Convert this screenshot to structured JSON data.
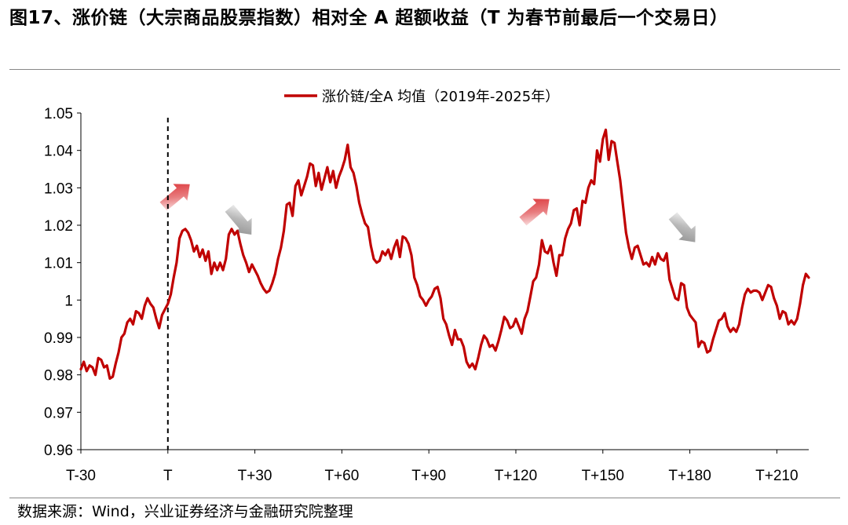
{
  "title": "图17、涨价链（大宗商品股票指数）相对全 A 超额收益（T 为春节前最后一个交易日）",
  "source": "数据来源：Wind，兴业证券经济与金融研究院整理",
  "colors": {
    "line": "#c00000",
    "up_arrow": "#d9262a",
    "down_arrow": "#8a8a8a",
    "axis": "#000000"
  },
  "chart_data": {
    "type": "line",
    "xlabel": "",
    "ylabel": "",
    "x_range": [
      -30,
      221
    ],
    "ylim": [
      0.96,
      1.05
    ],
    "grid": false,
    "legend_position": "top-center",
    "x_tick_labels": [
      "T-30",
      "T",
      "T+30",
      "T+60",
      "T+90",
      "T+120",
      "T+150",
      "T+180",
      "T+210"
    ],
    "x_ticks": [
      -30,
      0,
      30,
      60,
      90,
      120,
      150,
      180,
      210
    ],
    "y_tick_labels": [
      "0.96",
      "0.97",
      "0.98",
      "0.99",
      "1",
      "1.01",
      "1.02",
      "1.03",
      "1.04",
      "1.05"
    ],
    "y_ticks": [
      0.96,
      0.97,
      0.98,
      0.99,
      1.0,
      1.01,
      1.02,
      1.03,
      1.04,
      1.05
    ],
    "vline_x": 0,
    "annotations": [
      {
        "type": "up-arrow",
        "x": 3,
        "y": 1.028
      },
      {
        "type": "down-arrow",
        "x": 25,
        "y": 1.021
      },
      {
        "type": "up-arrow",
        "x": 127,
        "y": 1.024
      },
      {
        "type": "down-arrow",
        "x": 178,
        "y": 1.019
      }
    ],
    "series": [
      {
        "name": "涨价链/全A 均值（2019年-2025年）",
        "points": [
          [
            -30,
            0.9815
          ],
          [
            -29,
            0.9835
          ],
          [
            -28,
            0.981
          ],
          [
            -27,
            0.9825
          ],
          [
            -26,
            0.982
          ],
          [
            -25,
            0.98
          ],
          [
            -24,
            0.9845
          ],
          [
            -23,
            0.984
          ],
          [
            -22,
            0.982
          ],
          [
            -21,
            0.9825
          ],
          [
            -20,
            0.979
          ],
          [
            -19,
            0.9795
          ],
          [
            -18,
            0.983
          ],
          [
            -17,
            0.986
          ],
          [
            -16,
            0.99
          ],
          [
            -15,
            0.991
          ],
          [
            -14,
            0.994
          ],
          [
            -13,
            0.995
          ],
          [
            -12,
            0.9935
          ],
          [
            -11,
            0.997
          ],
          [
            -10,
            0.9965
          ],
          [
            -9,
            0.995
          ],
          [
            -8,
            0.9985
          ],
          [
            -7,
            1.0005
          ],
          [
            -6,
            0.999
          ],
          [
            -5,
            0.998
          ],
          [
            -4,
            0.995
          ],
          [
            -3,
            0.9925
          ],
          [
            -2,
            0.996
          ],
          [
            -1,
            0.9975
          ],
          [
            0,
            0.999
          ],
          [
            1,
            1.0015
          ],
          [
            2,
            1.006
          ],
          [
            3,
            1.01
          ],
          [
            4,
            1.0165
          ],
          [
            5,
            1.0185
          ],
          [
            6,
            1.019
          ],
          [
            7,
            1.018
          ],
          [
            8,
            1.016
          ],
          [
            9,
            1.013
          ],
          [
            10,
            1.0145
          ],
          [
            11,
            1.0115
          ],
          [
            12,
            1.0135
          ],
          [
            13,
            1.0105
          ],
          [
            14,
            1.013
          ],
          [
            15,
            1.007
          ],
          [
            16,
            1.01
          ],
          [
            17,
            1.008
          ],
          [
            18,
            1.01
          ],
          [
            19,
            1.008
          ],
          [
            20,
            1.011
          ],
          [
            21,
            1.0175
          ],
          [
            22,
            1.019
          ],
          [
            23,
            1.0175
          ],
          [
            24,
            1.0185
          ],
          [
            25,
            1.015
          ],
          [
            26,
            1.012
          ],
          [
            27,
            1.01
          ],
          [
            28,
            1.0075
          ],
          [
            29,
            1.0095
          ],
          [
            30,
            1.008
          ],
          [
            31,
            1.0065
          ],
          [
            32,
            1.0045
          ],
          [
            33,
            1.003
          ],
          [
            34,
            1.002
          ],
          [
            35,
            1.0025
          ],
          [
            36,
            1.0045
          ],
          [
            37,
            1.007
          ],
          [
            38,
            1.011
          ],
          [
            39,
            1.014
          ],
          [
            40,
            1.0185
          ],
          [
            41,
            1.0255
          ],
          [
            42,
            1.026
          ],
          [
            43,
            1.0225
          ],
          [
            44,
            1.0305
          ],
          [
            45,
            1.032
          ],
          [
            46,
            1.028
          ],
          [
            47,
            1.0305
          ],
          [
            48,
            1.033
          ],
          [
            49,
            1.0365
          ],
          [
            50,
            1.036
          ],
          [
            51,
            1.0305
          ],
          [
            52,
            1.034
          ],
          [
            53,
            1.0295
          ],
          [
            54,
            1.0325
          ],
          [
            55,
            1.0355
          ],
          [
            56,
            1.0315
          ],
          [
            57,
            1.0345
          ],
          [
            58,
            1.03
          ],
          [
            59,
            1.033
          ],
          [
            60,
            1.035
          ],
          [
            61,
            1.0375
          ],
          [
            62,
            1.0415
          ],
          [
            63,
            1.0355
          ],
          [
            64,
            1.034
          ],
          [
            65,
            1.0305
          ],
          [
            66,
            1.026
          ],
          [
            67,
            1.023
          ],
          [
            68,
            1.0205
          ],
          [
            69,
            1.0195
          ],
          [
            70,
            1.0145
          ],
          [
            71,
            1.011
          ],
          [
            72,
            1.01
          ],
          [
            73,
            1.0105
          ],
          [
            74,
            1.013
          ],
          [
            75,
            1.012
          ],
          [
            76,
            1.0135
          ],
          [
            77,
            1.011
          ],
          [
            78,
            1.014
          ],
          [
            79,
            1.016
          ],
          [
            80,
            1.0115
          ],
          [
            81,
            1.017
          ],
          [
            82,
            1.0165
          ],
          [
            83,
            1.015
          ],
          [
            84,
            1.012
          ],
          [
            85,
            1.006
          ],
          [
            86,
            1.004
          ],
          [
            87,
            1.001
          ],
          [
            88,
            1.0
          ],
          [
            89,
            0.9985
          ],
          [
            90,
            1.0
          ],
          [
            91,
            1.001
          ],
          [
            92,
            1.003
          ],
          [
            93,
            1.0035
          ],
          [
            94,
            1.0005
          ],
          [
            95,
            0.995
          ],
          [
            96,
            0.9935
          ],
          [
            97,
            0.9905
          ],
          [
            98,
            0.988
          ],
          [
            99,
            0.992
          ],
          [
            100,
            0.9895
          ],
          [
            101,
            0.9895
          ],
          [
            102,
            0.9875
          ],
          [
            103,
            0.9835
          ],
          [
            104,
            0.982
          ],
          [
            105,
            0.983
          ],
          [
            106,
            0.9815
          ],
          [
            107,
            0.9845
          ],
          [
            108,
            0.988
          ],
          [
            109,
            0.9905
          ],
          [
            110,
            0.9895
          ],
          [
            111,
            0.9875
          ],
          [
            112,
            0.988
          ],
          [
            113,
            0.9865
          ],
          [
            114,
            0.989
          ],
          [
            115,
            0.992
          ],
          [
            116,
            0.9955
          ],
          [
            117,
            0.9945
          ],
          [
            118,
            0.9925
          ],
          [
            119,
            0.993
          ],
          [
            120,
            0.995
          ],
          [
            121,
            0.993
          ],
          [
            122,
            0.991
          ],
          [
            123,
            0.995
          ],
          [
            124,
            0.997
          ],
          [
            125,
            1.001
          ],
          [
            126,
            1.005
          ],
          [
            127,
            1.006
          ],
          [
            128,
            1.0095
          ],
          [
            129,
            1.016
          ],
          [
            130,
            1.013
          ],
          [
            131,
            1.0125
          ],
          [
            132,
            1.0145
          ],
          [
            133,
            1.01
          ],
          [
            134,
            1.0065
          ],
          [
            135,
            1.012
          ],
          [
            136,
            1.012
          ],
          [
            137,
            1.0165
          ],
          [
            138,
            1.019
          ],
          [
            139,
            1.0205
          ],
          [
            140,
            1.024
          ],
          [
            141,
            1.0245
          ],
          [
            142,
            1.02
          ],
          [
            143,
            1.0265
          ],
          [
            144,
            1.026
          ],
          [
            145,
            1.03
          ],
          [
            146,
            1.032
          ],
          [
            147,
            1.031
          ],
          [
            148,
            1.04
          ],
          [
            149,
            1.037
          ],
          [
            150,
            1.043
          ],
          [
            151,
            1.0455
          ],
          [
            152,
            1.0375
          ],
          [
            153,
            1.0425
          ],
          [
            154,
            1.042
          ],
          [
            155,
            1.037
          ],
          [
            156,
            1.032
          ],
          [
            157,
            1.025
          ],
          [
            158,
            1.018
          ],
          [
            159,
            1.014
          ],
          [
            160,
            1.011
          ],
          [
            161,
            1.014
          ],
          [
            162,
            1.0145
          ],
          [
            163,
            1.012
          ],
          [
            164,
            1.0095
          ],
          [
            165,
            1.01
          ],
          [
            166,
            1.009
          ],
          [
            167,
            1.0115
          ],
          [
            168,
            1.0095
          ],
          [
            169,
            1.0125
          ],
          [
            170,
            1.011
          ],
          [
            171,
            1.0105
          ],
          [
            172,
            1.0125
          ],
          [
            173,
            1.0055
          ],
          [
            174,
            1.003
          ],
          [
            175,
            1.0005
          ],
          [
            176,
            1.0
          ],
          [
            177,
            1.0045
          ],
          [
            178,
            1.004
          ],
          [
            179,
            0.998
          ],
          [
            180,
            0.996
          ],
          [
            181,
            0.995
          ],
          [
            182,
            0.994
          ],
          [
            183,
            0.9875
          ],
          [
            184,
            0.989
          ],
          [
            185,
            0.9885
          ],
          [
            186,
            0.986
          ],
          [
            187,
            0.9865
          ],
          [
            188,
            0.9895
          ],
          [
            189,
            0.992
          ],
          [
            190,
            0.9945
          ],
          [
            191,
            0.995
          ],
          [
            192,
            0.9965
          ],
          [
            193,
            0.993
          ],
          [
            194,
            0.9915
          ],
          [
            195,
            0.9925
          ],
          [
            196,
            0.9915
          ],
          [
            197,
            0.9935
          ],
          [
            198,
            0.998
          ],
          [
            199,
            1.0015
          ],
          [
            200,
            1.003
          ],
          [
            201,
            1.002
          ],
          [
            202,
            1.0025
          ],
          [
            203,
            1.0025
          ],
          [
            204,
            1.002
          ],
          [
            205,
            1.0
          ],
          [
            206,
            1.002
          ],
          [
            207,
            1.004
          ],
          [
            208,
            1.0035
          ],
          [
            209,
            1.0005
          ],
          [
            210,
            0.9985
          ],
          [
            211,
            0.995
          ],
          [
            212,
            0.997
          ],
          [
            213,
            0.9965
          ],
          [
            214,
            0.9935
          ],
          [
            215,
            0.9945
          ],
          [
            216,
            0.9935
          ],
          [
            217,
            0.995
          ],
          [
            218,
            0.999
          ],
          [
            219,
            1.004
          ],
          [
            220,
            1.007
          ],
          [
            221,
            1.006
          ]
        ]
      }
    ]
  }
}
